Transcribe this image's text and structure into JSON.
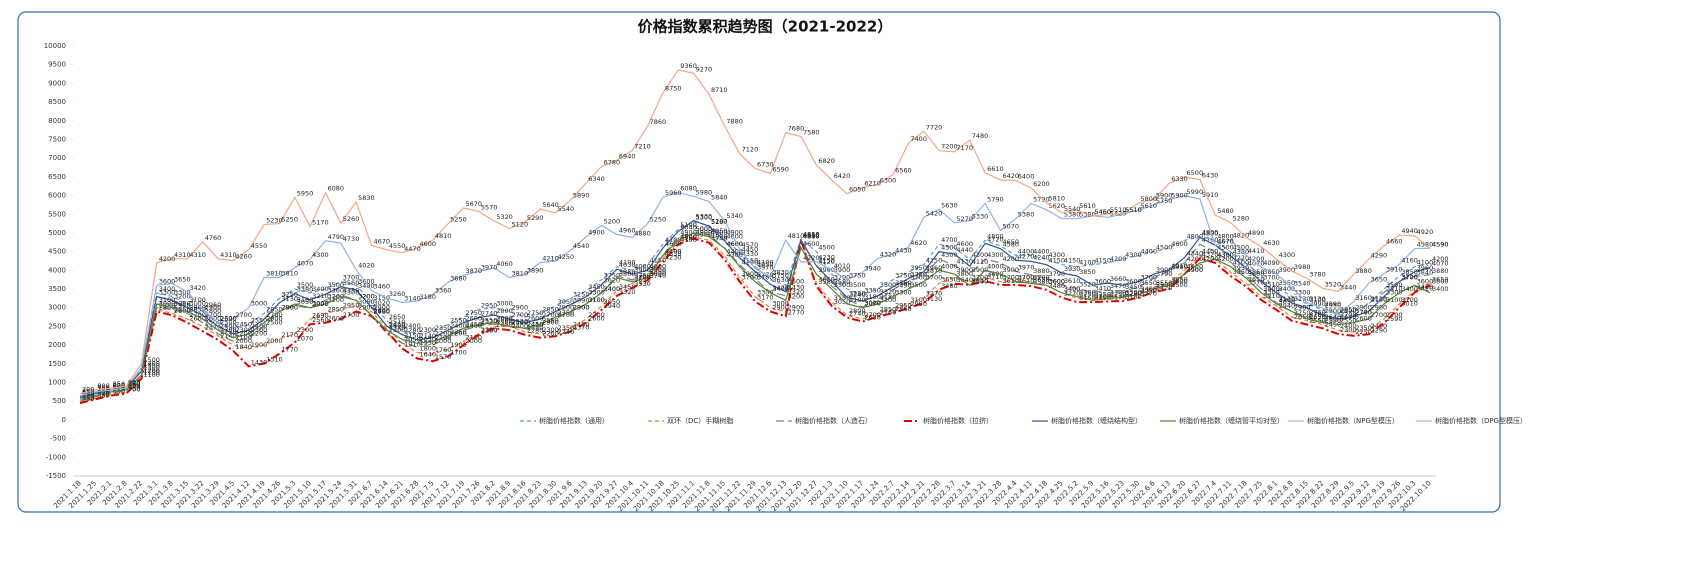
{
  "chart_data": {
    "type": "line",
    "title": "价格指数累积趋势图（2021-2022）",
    "categories": [
      "2021.1.18",
      "2021.1.25",
      "2021.2.1",
      "2021.2.8",
      "2021.2.22",
      "2021.3.1",
      "2021.3.8",
      "2021.3.15",
      "2021.3.22",
      "2021.3.29",
      "2021.4.5",
      "2021.4.12",
      "2021.4.19",
      "2021.4.26",
      "2021.5.3",
      "2021.5.10",
      "2021.5.17",
      "2021.5.24",
      "2021.5.31",
      "2021.6.7",
      "2021.6.14",
      "2021.6.21",
      "2021.6.28",
      "2021.7.5",
      "2021.7.12",
      "2021.7.19",
      "2021.7.26",
      "2021.8.2",
      "2021.8.9",
      "2021.8.16",
      "2021.8.23",
      "2021.8.30",
      "2021.9.6",
      "2021.9.13",
      "2021.9.20",
      "2021.9.27",
      "2021.10.4",
      "2021.10.11",
      "2021.10.18",
      "2021.10.25",
      "2021.11.1",
      "2021.11.8",
      "2021.11.15",
      "2021.11.22",
      "2021.11.29",
      "2021.12.6",
      "2021.12.13",
      "2021.12.20",
      "2021.12.27",
      "2022.1.3",
      "2022.1.10",
      "2022.1.17",
      "2022.1.24",
      "2022.2.7",
      "2022.2.14",
      "2022.2.21",
      "2022.2.28",
      "2022.3.7",
      "2022.3.14",
      "2022.3.21",
      "2022.3.28",
      "2022.4.4",
      "2022.4.11",
      "2022.4.18",
      "2022.4.25",
      "2022.5.2",
      "2022.5.9",
      "2022.5.16",
      "2022.5.23",
      "2022.5.30",
      "2022.6.6",
      "2022.6.13",
      "2022.6.20",
      "2022.6.27",
      "2022.7.4",
      "2022.7.11",
      "2022.7.18",
      "2022.7.25",
      "2022.8.1",
      "2022.8.8",
      "2022.8.15",
      "2022.8.22",
      "2022.8.29",
      "2022.9.5",
      "2022.9.12",
      "2022.9.19",
      "2022.9.26",
      "2022.10.3",
      "2022.10.10"
    ],
    "ylim": [
      -1500,
      10000
    ],
    "yticks": [
      -1500,
      -1000,
      -500,
      0,
      500,
      1000,
      1500,
      2000,
      2500,
      3000,
      3500,
      4000,
      4500,
      5000,
      5500,
      6000,
      6500,
      7000,
      7500,
      8000,
      8500,
      9000,
      9500,
      10000
    ],
    "series": [
      {
        "name": "树脂价格指数（通用）",
        "color": "#5b9bd5",
        "dash": "4 3",
        "width": 1.2,
        "values": [
          620,
          720,
          820,
          870,
          1350,
          3400,
          3300,
          3100,
          2900,
          2600,
          2450,
          2550,
          2850,
          3250,
          3500,
          3400,
          3500,
          3700,
          3600,
          3150,
          2650,
          2400,
          2300,
          2350,
          2550,
          2750,
          2950,
          3000,
          2900,
          2750,
          2850,
          3050,
          3250,
          3450,
          3750,
          4100,
          4000,
          4150,
          4700,
          5100,
          5300,
          5200,
          4900,
          4450,
          4100,
          3750,
          3600,
          4850,
          4500,
          3900,
          3500,
          3350,
          3500,
          3750,
          3950,
          4150,
          4700,
          4600,
          4300,
          4800,
          4650,
          4400,
          4400,
          4300,
          4150,
          4100,
          4150,
          4200,
          4300,
          4400,
          4500,
          4600,
          4800,
          4900,
          4800,
          4500,
          4200,
          3850,
          3550,
          3300,
          3100,
          2950,
          2850,
          2900,
          3100,
          3500,
          3850,
          4100,
          4200
        ]
      },
      {
        "name": "双环（DC）手糊树脂",
        "color": "#ed7d31",
        "dash": "4 3",
        "width": 1.2,
        "values": [
          480,
          580,
          680,
          730,
          1150,
          2950,
          2850,
          2700,
          2500,
          2250,
          2000,
          1900,
          2000,
          2170,
          2300,
          2690,
          2850,
          2950,
          3050,
          2900,
          2450,
          2050,
          1800,
          1760,
          1900,
          2100,
          2300,
          2500,
          2500,
          2350,
          2300,
          2350,
          2450,
          2700,
          3050,
          3450,
          3650,
          3850,
          4330,
          4760,
          4900,
          4800,
          4400,
          3800,
          3300,
          3000,
          2900,
          4840,
          3650,
          3150,
          2800,
          2700,
          2850,
          2950,
          3100,
          3270,
          3650,
          3800,
          3700,
          3800,
          3700,
          3700,
          3700,
          3600,
          3400,
          3250,
          3250,
          3300,
          3300,
          3400,
          3550,
          3650,
          4000,
          4400,
          4300,
          3950,
          3650,
          3300,
          3050,
          2750,
          2650,
          2550,
          2400,
          2350,
          2400,
          2700,
          3100,
          3450,
          3650
        ]
      },
      {
        "name": "树脂价格指数（人造石）",
        "color": "#7f7f7f",
        "dash": "8 4",
        "width": 1.2,
        "values": [
          500,
          620,
          720,
          780,
          1200,
          3000,
          2950,
          2850,
          2600,
          2300,
          2100,
          2200,
          2500,
          2900,
          3050,
          2990,
          3200,
          3350,
          3200,
          2800,
          2300,
          2050,
          1950,
          2000,
          2200,
          2400,
          2520,
          2560,
          2520,
          2440,
          2500,
          2700,
          2900,
          3100,
          3400,
          3850,
          3750,
          3900,
          4400,
          4900,
          5000,
          4950,
          4600,
          4150,
          3770,
          3420,
          3320,
          4800,
          4150,
          3580,
          3240,
          3020,
          3180,
          3490,
          3700,
          3870,
          4300,
          4130,
          3900,
          4300,
          4200,
          3970,
          3880,
          3790,
          3610,
          3520,
          3410,
          3470,
          3450,
          3550,
          3790,
          3980,
          4200,
          4700,
          4500,
          4220,
          3850,
          3510,
          3130,
          2900,
          2760,
          2640,
          2640,
          2770,
          3130,
          3410,
          3720,
          3840,
          3880
        ]
      },
      {
        "name": "树脂价格指数（拉挤）",
        "color": "#e00000",
        "dash": "8 3 2 3",
        "width": 2,
        "values": [
          450,
          550,
          650,
          700,
          1100,
          2900,
          2800,
          2600,
          2370,
          2140,
          1840,
          1430,
          1510,
          1770,
          2070,
          2560,
          2600,
          2700,
          2900,
          2780,
          2370,
          1910,
          1640,
          1570,
          1700,
          2000,
          2280,
          2450,
          2400,
          2280,
          2200,
          2240,
          2370,
          2600,
          2940,
          3320,
          3530,
          3740,
          4230,
          4700,
          4850,
          4740,
          4300,
          3700,
          3170,
          2900,
          2770,
          4810,
          3580,
          3050,
          2740,
          2630,
          2760,
          2860,
          2990,
          3130,
          3480,
          3640,
          3610,
          3710,
          3610,
          3610,
          3580,
          3480,
          3270,
          3150,
          3150,
          3170,
          3180,
          3270,
          3420,
          3500,
          3900,
          4320,
          4200,
          3850,
          3570,
          3210,
          2940,
          2650,
          2550,
          2450,
          2300,
          2250,
          2290,
          2590,
          3010,
          3410,
          3600
        ]
      },
      {
        "name": "树脂价格指数（缠绕结构型）",
        "color": "#2f5597",
        "dash": "",
        "width": 1.2,
        "values": [
          600,
          700,
          800,
          850,
          1300,
          3300,
          3200,
          3000,
          2800,
          2500,
          2300,
          2400,
          2700,
          3130,
          3380,
          3210,
          3360,
          3560,
          3480,
          3020,
          2510,
          2280,
          2140,
          2200,
          2400,
          2600,
          2740,
          2800,
          2700,
          2600,
          2700,
          2900,
          3090,
          3300,
          3620,
          4030,
          3900,
          4000,
          4600,
          5040,
          5330,
          5180,
          4800,
          4330,
          3970,
          3630,
          3430,
          4800,
          4120,
          3700,
          3280,
          3180,
          3320,
          3560,
          3780,
          3960,
          4500,
          4440,
          4110,
          4720,
          4580,
          4270,
          4240,
          4150,
          3930,
          3850,
          3600,
          3660,
          3600,
          3700,
          3900,
          4010,
          4340,
          4880,
          4670,
          4380,
          4070,
          3700,
          3400,
          3130,
          2990,
          2800,
          2700,
          2760,
          2900,
          3300,
          3700,
          3960,
          4070
        ]
      },
      {
        "name": "树脂价格指数（缠绕管平均对型）",
        "color": "#548235",
        "dash": "",
        "width": 1.2,
        "values": [
          550,
          650,
          750,
          800,
          1200,
          3100,
          3000,
          2900,
          2700,
          2400,
          2200,
          2300,
          2600,
          2900,
          3100,
          3000,
          3100,
          3300,
          3200,
          2800,
          2400,
          2150,
          2050,
          2100,
          2250,
          2450,
          2550,
          2600,
          2500,
          2450,
          2550,
          2750,
          2900,
          3100,
          3400,
          3800,
          3700,
          3800,
          4400,
          4800,
          5000,
          4900,
          4600,
          4100,
          3700,
          3400,
          3200,
          4600,
          3900,
          3500,
          3100,
          3000,
          3100,
          3300,
          3500,
          3700,
          4000,
          3900,
          3600,
          4000,
          3900,
          3700,
          3650,
          3600,
          3400,
          3300,
          3200,
          3250,
          3280,
          3350,
          3500,
          3600,
          3900,
          4200,
          4300,
          4100,
          3800,
          3400,
          3100,
          2900,
          2700,
          2600,
          2550,
          2600,
          2700,
          3100,
          3400,
          3600,
          3400
        ]
      },
      {
        "name": "树脂价格指数（NPG型模压）",
        "color": "#8fb4e3",
        "dash": "",
        "width": 1.2,
        "values": [
          650,
          750,
          800,
          850,
          1400,
          3600,
          3650,
          3420,
          2960,
          2590,
          2700,
          3000,
          3810,
          3810,
          4070,
          4300,
          4790,
          4730,
          4020,
          3460,
          3260,
          3140,
          3180,
          3360,
          3680,
          3870,
          3970,
          4060,
          3810,
          3890,
          4210,
          4250,
          4540,
          4900,
          5200,
          4960,
          4880,
          5250,
          5960,
          6080,
          5980,
          5840,
          5340,
          4570,
          4050,
          3830,
          4810,
          4220,
          4230,
          4010,
          3750,
          3940,
          4320,
          4430,
          4620,
          5420,
          5630,
          5270,
          5330,
          5790,
          5070,
          5380,
          5790,
          5620,
          5380,
          5380,
          5460,
          5420,
          5510,
          5610,
          5750,
          5900,
          5990,
          5910,
          4670,
          4820,
          4410,
          4090,
          3900,
          3540,
          3130,
          2990,
          2800,
          3160,
          3650,
          3910,
          4160,
          4580,
          4590
        ]
      },
      {
        "name": "树脂价格指数（DPG型模压）",
        "color": "#f4a582",
        "dash": "",
        "width": 1.2,
        "values": [
          700,
          800,
          850,
          900,
          1500,
          4200,
          4310,
          4310,
          4760,
          4310,
          4260,
          4550,
          5230,
          5250,
          5950,
          5170,
          6080,
          5260,
          5830,
          4670,
          4550,
          4470,
          4600,
          4810,
          5250,
          5670,
          5570,
          5320,
          5120,
          5290,
          5640,
          5540,
          5890,
          6340,
          6780,
          6940,
          7210,
          7860,
          8750,
          9360,
          9270,
          8710,
          7880,
          7120,
          6730,
          6590,
          7680,
          7580,
          6820,
          6420,
          6050,
          6210,
          6300,
          6560,
          7400,
          7720,
          7200,
          7170,
          7480,
          6610,
          6420,
          6400,
          6200,
          5810,
          5540,
          5610,
          5450,
          5510,
          5510,
          5800,
          5900,
          6330,
          6500,
          6430,
          5480,
          5280,
          4890,
          4630,
          4300,
          3980,
          3780,
          3520,
          3440,
          3880,
          4290,
          4660,
          4940,
          4920,
          4590
        ]
      }
    ]
  }
}
